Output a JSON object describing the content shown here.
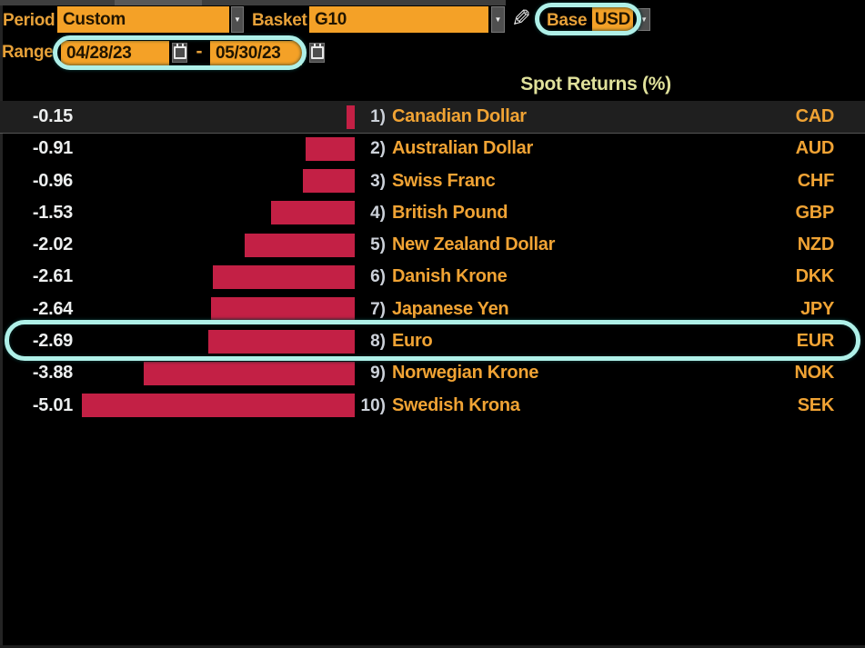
{
  "toolbar": {
    "period": {
      "label": "Period",
      "value": "Custom"
    },
    "basket": {
      "label": "Basket",
      "value": "G10"
    },
    "base": {
      "label": "Base",
      "value": "USD"
    },
    "range": {
      "label": "Range",
      "start": "04/28/23",
      "separator": "-",
      "end": "05/30/23"
    }
  },
  "icons": {
    "dropdown_arrow": "▼",
    "pencil": "✎"
  },
  "chart_data": {
    "type": "bar",
    "orientation": "horizontal",
    "title": "Spot Returns (%)",
    "unit": "%",
    "categories": [
      "Canadian Dollar",
      "Australian Dollar",
      "Swiss Franc",
      "British Pound",
      "New Zealand Dollar",
      "Danish Krone",
      "Japanese Yen",
      "Euro",
      "Norwegian Krone",
      "Swedish Krona"
    ],
    "codes": [
      "CAD",
      "AUD",
      "CHF",
      "GBP",
      "NZD",
      "DKK",
      "JPY",
      "EUR",
      "NOK",
      "SEK"
    ],
    "rank_labels": [
      "1)",
      "2)",
      "3)",
      "4)",
      "5)",
      "6)",
      "7)",
      "8)",
      "9)",
      "10)"
    ],
    "values": [
      -0.15,
      -0.91,
      -0.96,
      -1.53,
      -2.02,
      -2.61,
      -2.64,
      -2.69,
      -3.88,
      -5.01
    ],
    "value_labels": [
      "-0.15",
      "-0.91",
      "-0.96",
      "-1.53",
      "-2.02",
      "-2.61",
      "-2.64",
      "-2.69",
      "-3.88",
      "-5.01"
    ],
    "xlim": [
      -5.01,
      0
    ],
    "grid": false,
    "legend_position": "none",
    "bar_color": "#c32045",
    "selected_category": "Canadian Dollar",
    "annotated_category": "Euro"
  },
  "annotations": {
    "highlight_color": "#aff0e8",
    "items": [
      "base-currency-selector",
      "range-date-inputs",
      "euro-row"
    ]
  },
  "colors": {
    "background": "#000000",
    "field_orange": "#f4a127",
    "label_orange": "#e7a139",
    "row_name_orange": "#f0a334",
    "value_white": "#eceeee",
    "header_yellow": "#e0e19b",
    "bar_red": "#c32045",
    "selected_row_bg": "#1f1f1f"
  }
}
